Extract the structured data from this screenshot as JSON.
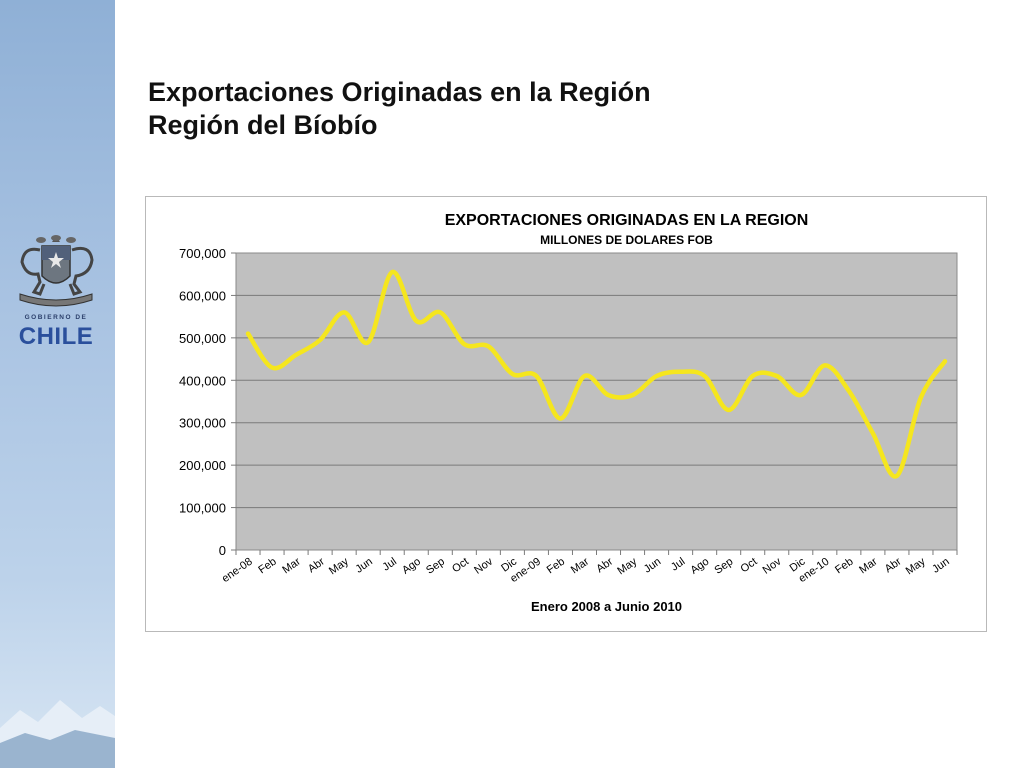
{
  "slide": {
    "title_line1": "Exportaciones Originadas en la Región",
    "title_line2": "Región del Bíobío"
  },
  "logo": {
    "small_text": "GOBIERNO DE",
    "big_text": "CHILE"
  },
  "colors": {
    "line": "#f5e61e",
    "plot_bg": "#c0c0c0",
    "sidebar": "#a9c3e2"
  },
  "chart_data": {
    "type": "line",
    "title": "EXPORTACIONES ORIGINADAS EN LA REGION",
    "subtitle": "MILLONES DE DOLARES FOB",
    "xlabel": "Enero 2008  a Junio 2010",
    "ylabel": "",
    "ylim": [
      0,
      700000
    ],
    "yticks": [
      "700,000",
      "600,000",
      "500,000",
      "400,000",
      "300,000",
      "200,000",
      "100,000",
      "0"
    ],
    "categories": [
      "ene-08",
      "Feb",
      "Mar",
      "Abr",
      "May",
      "Jun",
      "Jul",
      "Ago",
      "Sep",
      "Oct",
      "Nov",
      "Dic",
      "ene-09",
      "Feb",
      "Mar",
      "Abr",
      "May",
      "Jun",
      "Jul",
      "Ago",
      "Sep",
      "Oct",
      "Nov",
      "Dic",
      "ene-10",
      "Feb",
      "Mar",
      "Abr",
      "May",
      "Jun"
    ],
    "series": [
      {
        "name": "",
        "values": [
          510000,
          430000,
          460000,
          495000,
          560000,
          490000,
          655000,
          540000,
          560000,
          485000,
          480000,
          415000,
          410000,
          310000,
          410000,
          365000,
          365000,
          410000,
          420000,
          410000,
          330000,
          410000,
          410000,
          365000,
          435000,
          375000,
          275000,
          175000,
          360000,
          445000
        ]
      }
    ],
    "grid": true,
    "legend": "none"
  }
}
